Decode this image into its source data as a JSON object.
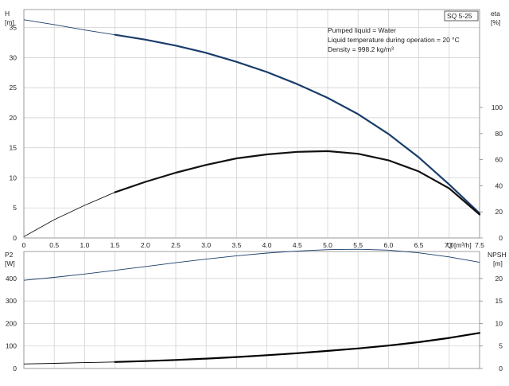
{
  "chart_data": {
    "type": "line",
    "model_badge": "SQ 5-25",
    "info_lines": [
      "Pumped liquid = Water",
      "Liquid temperature during operation = 20 °C",
      "Density = 998.2 kg/m³"
    ],
    "x_axis": {
      "label": "Q [m³/h]",
      "range": [
        0,
        7.5
      ],
      "ticks": [
        0,
        0.5,
        1.0,
        1.5,
        2.0,
        2.5,
        3.0,
        3.5,
        4.0,
        4.5,
        5.0,
        5.5,
        6.0,
        6.5,
        7.0,
        7.5
      ],
      "tick_labels": [
        "0",
        "0.5",
        "1.0",
        "1.5",
        "2.0",
        "2.5",
        "3.0",
        "3.5",
        "4.0",
        "4.5",
        "5.0",
        "5.5",
        "6.0",
        "6.5",
        "7.0",
        "7.5"
      ]
    },
    "top_panel": {
      "left_axis": {
        "title": "H",
        "unit": "[m]",
        "range": [
          0,
          38
        ],
        "ticks": [
          0,
          5,
          10,
          15,
          20,
          25,
          30,
          35
        ]
      },
      "right_axis": {
        "title": "eta",
        "unit": "[%]",
        "range": [
          0,
          175
        ],
        "ticks": [
          0,
          20,
          40,
          60,
          80,
          100
        ]
      },
      "series": [
        {
          "id": "head",
          "axis": "left",
          "color": "#1a3d6b",
          "thick_from": 1.5,
          "x": [
            0,
            0.5,
            1.0,
            1.5,
            2.0,
            2.5,
            3.0,
            3.5,
            4.0,
            4.5,
            5.0,
            5.5,
            6.0,
            6.5,
            7.0,
            7.5
          ],
          "y": [
            36.3,
            35.5,
            34.6,
            33.8,
            33.0,
            32.0,
            30.8,
            29.3,
            27.6,
            25.6,
            23.3,
            20.6,
            17.3,
            13.4,
            8.9,
            4.1
          ]
        },
        {
          "id": "efficiency",
          "axis": "right",
          "color": "#111111",
          "thick_from": 1.5,
          "x": [
            0,
            0.5,
            1.0,
            1.5,
            2.0,
            2.5,
            3.0,
            3.5,
            4.0,
            4.5,
            5.0,
            5.5,
            6.0,
            6.5,
            7.0,
            7.5
          ],
          "y": [
            1,
            14,
            25,
            35,
            43,
            50,
            56,
            61,
            64,
            66,
            66.5,
            64.5,
            59.5,
            51,
            38,
            18
          ]
        }
      ]
    },
    "bottom_panel": {
      "left_axis": {
        "title": "P2",
        "unit": "[W]",
        "range": [
          0,
          520
        ],
        "ticks": [
          0,
          100,
          200,
          300,
          400
        ]
      },
      "right_axis": {
        "title": "NPSH",
        "unit": "[m]",
        "range": [
          0,
          26
        ],
        "ticks": [
          0,
          5,
          10,
          15,
          20
        ]
      },
      "series": [
        {
          "id": "p2-upper",
          "axis": "left",
          "color": "#1a3d6b",
          "thick_from": 7.6,
          "x": [
            0,
            0.5,
            1.0,
            1.5,
            2.0,
            2.5,
            3.0,
            3.5,
            4.0,
            4.5,
            5.0,
            5.5,
            6.0,
            6.5,
            7.0,
            7.5
          ],
          "y": [
            392,
            405,
            420,
            436,
            453,
            470,
            486,
            501,
            513,
            522,
            528,
            530,
            526,
            514,
            496,
            472
          ]
        },
        {
          "id": "p2-lower",
          "axis": "left",
          "color": "#000000",
          "thick_from": 1.5,
          "x": [
            0,
            0.5,
            1.0,
            1.5,
            2.0,
            2.5,
            3.0,
            3.5,
            4.0,
            4.5,
            5.0,
            5.5,
            6.0,
            6.5,
            7.0,
            7.5
          ],
          "y": [
            20,
            23,
            26,
            29,
            33,
            38,
            44,
            51,
            59,
            68,
            78,
            89,
            102,
            117,
            136,
            158
          ]
        }
      ]
    }
  }
}
